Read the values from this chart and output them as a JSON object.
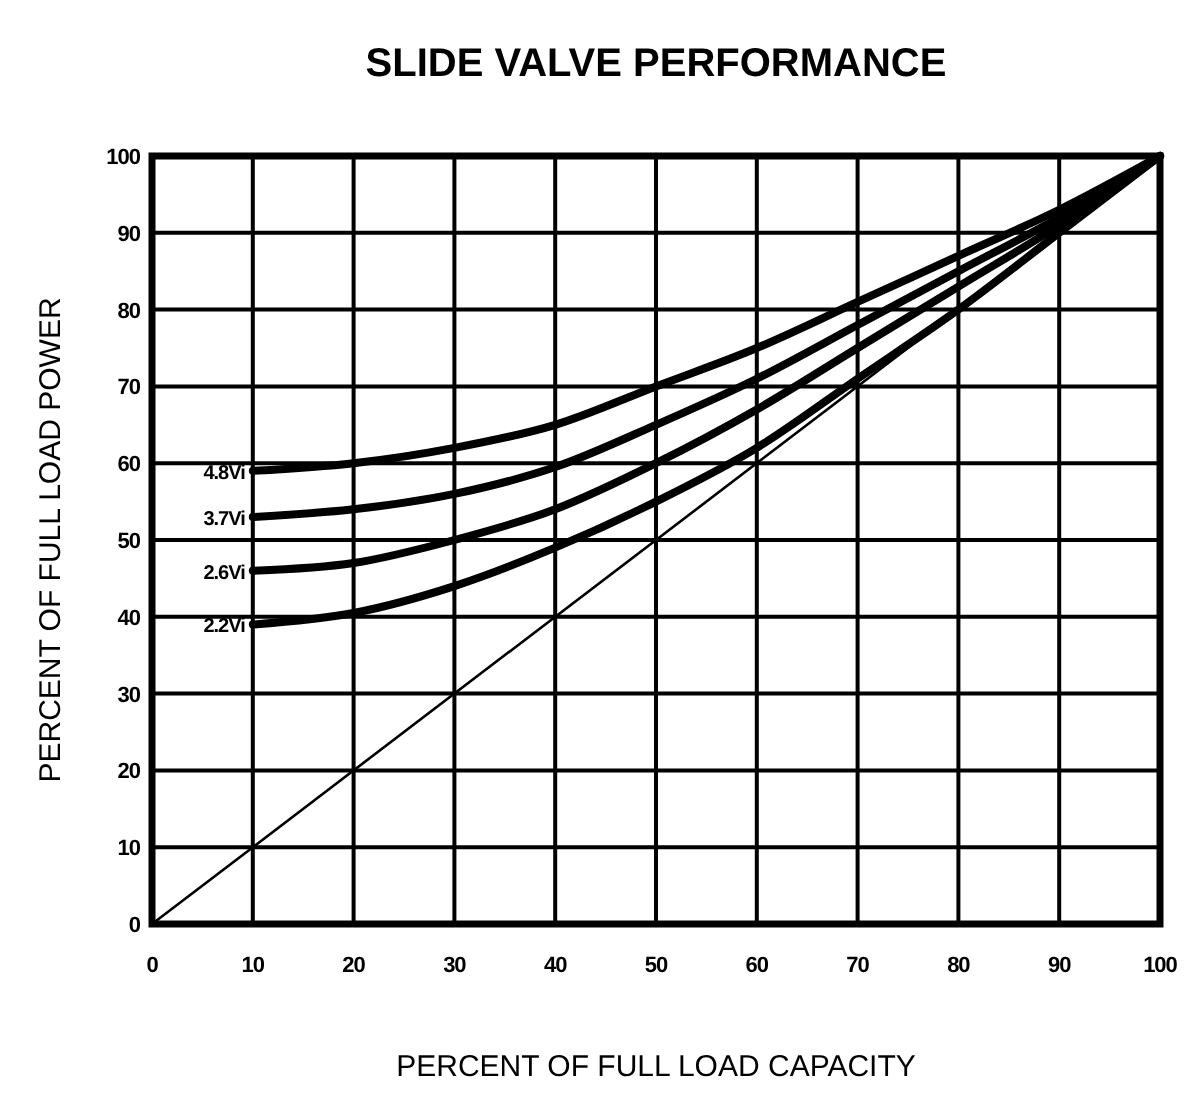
{
  "chart_data": {
    "type": "line",
    "title": "SLIDE VALVE PERFORMANCE",
    "xlabel": "PERCENT OF FULL LOAD CAPACITY",
    "ylabel": "PERCENT OF FULL LOAD POWER",
    "xlim": [
      0,
      100
    ],
    "ylim": [
      0,
      100
    ],
    "xticks": [
      0,
      10,
      20,
      30,
      40,
      50,
      60,
      70,
      80,
      90,
      100
    ],
    "yticks": [
      0,
      10,
      20,
      30,
      40,
      50,
      60,
      70,
      80,
      90,
      100
    ],
    "grid": true,
    "marker": "none",
    "line_style": "solid",
    "series": [
      {
        "name": "4.8Vi",
        "color": "#000000",
        "x": [
          10,
          20,
          30,
          40,
          50,
          60,
          70,
          80,
          90,
          100
        ],
        "values": [
          59,
          60,
          62,
          65,
          70,
          75,
          81,
          87,
          93,
          100
        ]
      },
      {
        "name": "3.7Vi",
        "color": "#000000",
        "x": [
          10,
          20,
          30,
          40,
          50,
          60,
          70,
          80,
          90,
          100
        ],
        "values": [
          53,
          54,
          56,
          59.5,
          65,
          71,
          78,
          85,
          92,
          100
        ]
      },
      {
        "name": "2.6Vi",
        "color": "#000000",
        "x": [
          10,
          20,
          30,
          40,
          50,
          60,
          70,
          80,
          90,
          100
        ],
        "values": [
          46,
          47,
          50,
          54,
          60,
          67,
          75,
          83,
          91,
          100
        ]
      },
      {
        "name": "2.2Vi",
        "color": "#000000",
        "x": [
          10,
          20,
          30,
          40,
          50,
          60,
          70,
          80,
          90,
          100
        ],
        "values": [
          39,
          40.5,
          44,
          49,
          55,
          62,
          71,
          80,
          90,
          100
        ]
      },
      {
        "color": "#000000",
        "x": [
          0,
          100
        ],
        "values": [
          0,
          100
        ]
      }
    ]
  }
}
